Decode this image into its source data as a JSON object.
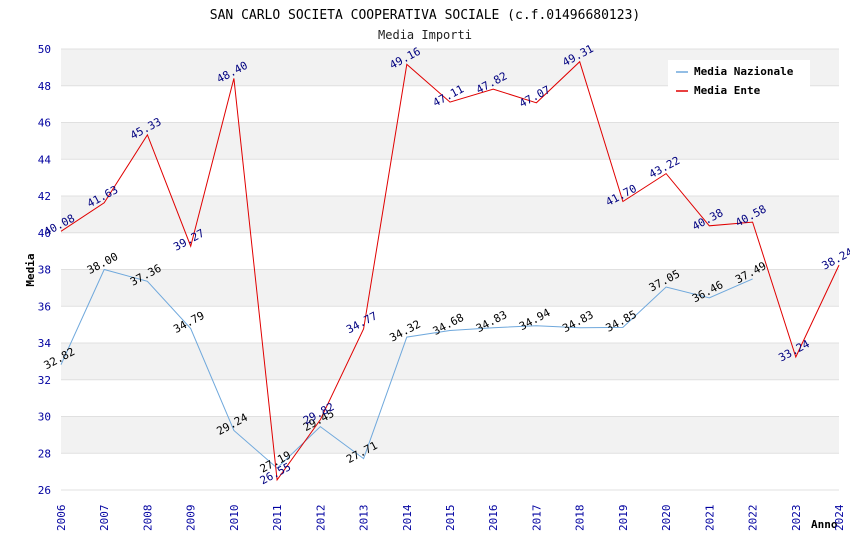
{
  "chart_data": {
    "type": "line",
    "title": "SAN CARLO SOCIETA COOPERATIVA SOCIALE (c.f.01496680123)",
    "subtitle": "Media Importi",
    "xlabel": "Anno",
    "ylabel": "Media",
    "ylim": [
      26,
      50
    ],
    "ytick_step": 2,
    "x": [
      2006,
      2007,
      2008,
      2009,
      2010,
      2011,
      2012,
      2013,
      2014,
      2015,
      2016,
      2017,
      2018,
      2019,
      2020,
      2021,
      2022,
      2023,
      2024
    ],
    "grid": true,
    "legend_position": "top-right",
    "series": [
      {
        "name": "Media Nazionale",
        "color": "#6fa8dc",
        "values": [
          32.82,
          38.0,
          37.36,
          34.79,
          29.24,
          27.19,
          29.45,
          27.71,
          34.32,
          34.68,
          34.83,
          34.94,
          34.83,
          34.85,
          37.05,
          36.46,
          37.49,
          null,
          null
        ],
        "labels": [
          "32.82",
          "38.00",
          "37.36",
          "34.79",
          "29.24",
          "27.19",
          "29.45",
          "27.71",
          "34.32",
          "34.68",
          "34.83",
          "34.94",
          "34.83",
          "34.85",
          "37.05",
          "36.46",
          "37.49",
          null,
          null
        ]
      },
      {
        "name": "Media Ente",
        "color": "#e00000",
        "values": [
          40.08,
          41.63,
          45.33,
          39.27,
          48.4,
          26.55,
          29.82,
          34.77,
          49.16,
          47.11,
          47.82,
          47.07,
          49.31,
          41.7,
          43.22,
          40.38,
          40.58,
          33.24,
          38.24
        ],
        "labels": [
          "40.08",
          "41.63",
          "45.33",
          "39.27",
          "48.40",
          "26.55",
          "29.82",
          "34.77",
          "49.16",
          "47.11",
          "47.82",
          "47.07",
          "49.31",
          "41.70",
          "43.22",
          "40.38",
          "40.58",
          "33.24",
          "38.24"
        ]
      }
    ]
  }
}
